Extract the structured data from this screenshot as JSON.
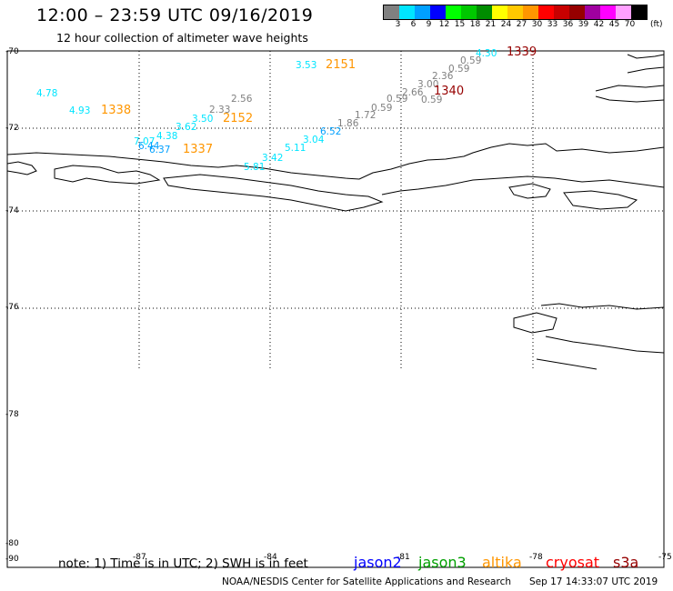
{
  "header": {
    "title": "12:00 – 23:59 UTC 09/16/2019",
    "subtitle": "12 hour collection of altimeter wave heights"
  },
  "legend": {
    "unit": "(ft)",
    "colors": [
      "#808080",
      "#00e5ff",
      "#00a0ff",
      "#0000ff",
      "#00ff00",
      "#00c800",
      "#008c00",
      "#ffff00",
      "#ffc800",
      "#ff9600",
      "#ff0000",
      "#c80000",
      "#960000",
      "#a000a0",
      "#ff00ff",
      "#ffa0ff",
      "#000000"
    ],
    "labels": [
      "3",
      "6",
      "9",
      "12",
      "15",
      "18",
      "21",
      "24",
      "27",
      "30",
      "33",
      "36",
      "39",
      "42",
      "45",
      "70"
    ]
  },
  "axes": {
    "lat_labels": [
      "-70",
      "-72",
      "-74",
      "-76",
      "-78",
      "-80",
      "-90"
    ],
    "lon_labels": [
      "-87",
      "-84",
      "-81",
      "-78",
      "-75"
    ]
  },
  "observations": [
    {
      "text": "4.78",
      "color": "#00e5ff"
    },
    {
      "text": "4.93",
      "color": "#00e5ff"
    },
    {
      "text": "3.62",
      "color": "#00e5ff"
    },
    {
      "text": "3.50",
      "color": "#00e5ff"
    },
    {
      "text": "2.33",
      "color": "#808080"
    },
    {
      "text": "2.56",
      "color": "#808080"
    },
    {
      "text": "7.07",
      "color": "#00e5ff"
    },
    {
      "text": "4.38",
      "color": "#00e5ff"
    },
    {
      "text": "6.44",
      "color": "#00a0ff"
    },
    {
      "text": "6.37",
      "color": "#00a0ff"
    },
    {
      "text": "3.53",
      "color": "#00e5ff"
    },
    {
      "text": "4.30",
      "color": "#00e5ff"
    },
    {
      "text": "0.59",
      "color": "#808080"
    },
    {
      "text": "0.59",
      "color": "#808080"
    },
    {
      "text": "0.59",
      "color": "#808080"
    },
    {
      "text": "2.36",
      "color": "#808080"
    },
    {
      "text": "3.00",
      "color": "#808080"
    },
    {
      "text": "2.66",
      "color": "#808080"
    },
    {
      "text": "0.59",
      "color": "#808080"
    },
    {
      "text": "0.59",
      "color": "#808080"
    },
    {
      "text": "1.72",
      "color": "#808080"
    },
    {
      "text": "1.86",
      "color": "#808080"
    },
    {
      "text": "6.52",
      "color": "#00a0ff"
    },
    {
      "text": "3.04",
      "color": "#00e5ff"
    },
    {
      "text": "5.11",
      "color": "#00e5ff"
    },
    {
      "text": "3.42",
      "color": "#00e5ff"
    },
    {
      "text": "5.81",
      "color": "#00e5ff"
    }
  ],
  "passes": [
    {
      "text": "1338",
      "color": "#ff9600"
    },
    {
      "text": "2152",
      "color": "#ff9600"
    },
    {
      "text": "1337",
      "color": "#ff9600"
    },
    {
      "text": "2151",
      "color": "#ff9600"
    },
    {
      "text": "1339",
      "color": "#960000"
    },
    {
      "text": "1340",
      "color": "#960000"
    }
  ],
  "note": "note:  1) Time is in UTC;  2) SWH is in feet",
  "satellites": [
    {
      "name": "jason2",
      "color": "#0000ff"
    },
    {
      "name": "jason3",
      "color": "#00a000"
    },
    {
      "name": "altika",
      "color": "#ff9600"
    },
    {
      "name": "cryosat",
      "color": "#ff0000"
    },
    {
      "name": "s3a",
      "color": "#960000"
    }
  ],
  "footer": {
    "credit": "NOAA/NESDIS Center for Satellite Applications and Research",
    "timestamp": "Sep 17 14:33:07 UTC 2019"
  }
}
